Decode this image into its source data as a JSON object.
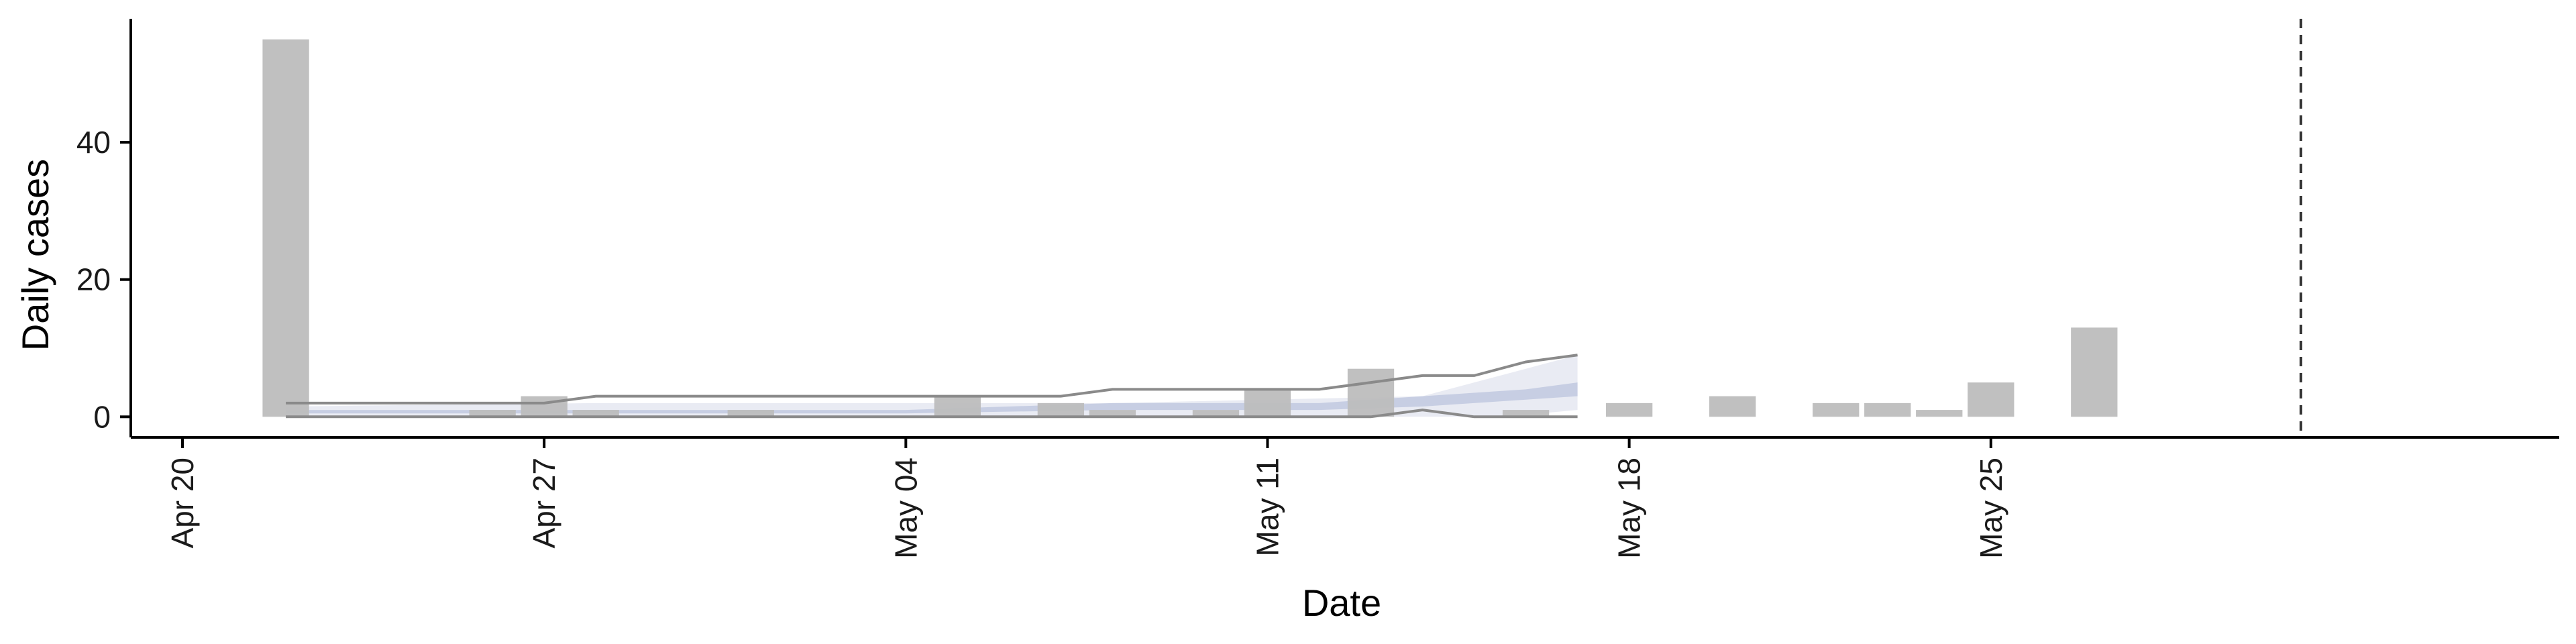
{
  "chart_data": {
    "type": "bar",
    "xlabel": "Date",
    "ylabel": "Daily cases",
    "x_axis": {
      "type": "date",
      "range": [
        "2020-04-19",
        "2020-06-05"
      ],
      "ticks": [
        {
          "date": "2020-04-20",
          "label": "Apr 20"
        },
        {
          "date": "2020-04-27",
          "label": "Apr 27"
        },
        {
          "date": "2020-05-04",
          "label": "May 04"
        },
        {
          "date": "2020-05-11",
          "label": "May 11"
        },
        {
          "date": "2020-05-18",
          "label": "May 18"
        },
        {
          "date": "2020-05-25",
          "label": "May 25"
        }
      ]
    },
    "y_axis": {
      "range": [
        -3,
        58
      ],
      "ticks": [
        0,
        20,
        40
      ]
    },
    "grid": false,
    "legend": "none",
    "bars": {
      "color": "#bdbdbd",
      "points": [
        {
          "date": "2020-04-22",
          "value": 55
        },
        {
          "date": "2020-04-26",
          "value": 1
        },
        {
          "date": "2020-04-27",
          "value": 3
        },
        {
          "date": "2020-04-28",
          "value": 1
        },
        {
          "date": "2020-05-01",
          "value": 1
        },
        {
          "date": "2020-05-05",
          "value": 3
        },
        {
          "date": "2020-05-07",
          "value": 2
        },
        {
          "date": "2020-05-08",
          "value": 1
        },
        {
          "date": "2020-05-10",
          "value": 1
        },
        {
          "date": "2020-05-11",
          "value": 4
        },
        {
          "date": "2020-05-13",
          "value": 7
        },
        {
          "date": "2020-05-16",
          "value": 1
        },
        {
          "date": "2020-05-18",
          "value": 2
        },
        {
          "date": "2020-05-20",
          "value": 3
        },
        {
          "date": "2020-05-22",
          "value": 2
        },
        {
          "date": "2020-05-23",
          "value": 2
        },
        {
          "date": "2020-05-24",
          "value": 1
        },
        {
          "date": "2020-05-25",
          "value": 5
        },
        {
          "date": "2020-05-27",
          "value": 13
        }
      ]
    },
    "bands": [
      {
        "color": "#e9ebf3",
        "dates": [
          "2020-04-22",
          "2020-04-28",
          "2020-05-08",
          "2020-05-14",
          "2020-05-15",
          "2020-05-16",
          "2020-05-17"
        ],
        "lower": [
          0,
          0,
          0,
          0,
          0,
          0.3,
          1
        ],
        "upper": [
          1.5,
          2,
          2,
          3,
          5,
          7,
          9
        ]
      },
      {
        "color": "#c7cee3",
        "dates": [
          "2020-04-22",
          "2020-05-04",
          "2020-05-08",
          "2020-05-12",
          "2020-05-14",
          "2020-05-15",
          "2020-05-16",
          "2020-05-17"
        ],
        "lower": [
          0.5,
          0.5,
          1,
          1,
          1.5,
          2,
          2.5,
          3
        ],
        "upper": [
          1,
          1,
          2,
          2,
          3,
          3.5,
          4,
          5
        ]
      }
    ],
    "lines": [
      {
        "color": "#8a8a8a",
        "dates": [
          "2020-04-22",
          "2020-04-27",
          "2020-04-28",
          "2020-05-07",
          "2020-05-08",
          "2020-05-12",
          "2020-05-13",
          "2020-05-14",
          "2020-05-15",
          "2020-05-16",
          "2020-05-17"
        ],
        "values": [
          2,
          2,
          3,
          3,
          4,
          4,
          5,
          6,
          6,
          8,
          9
        ]
      },
      {
        "color": "#8a8a8a",
        "dates": [
          "2020-04-22",
          "2020-05-13",
          "2020-05-14",
          "2020-05-15",
          "2020-05-16",
          "2020-05-17"
        ],
        "values": [
          0,
          0,
          1,
          0,
          0,
          0
        ]
      }
    ],
    "vline": {
      "date": "2020-05-31",
      "style": "dashed",
      "color": "#333333"
    }
  }
}
